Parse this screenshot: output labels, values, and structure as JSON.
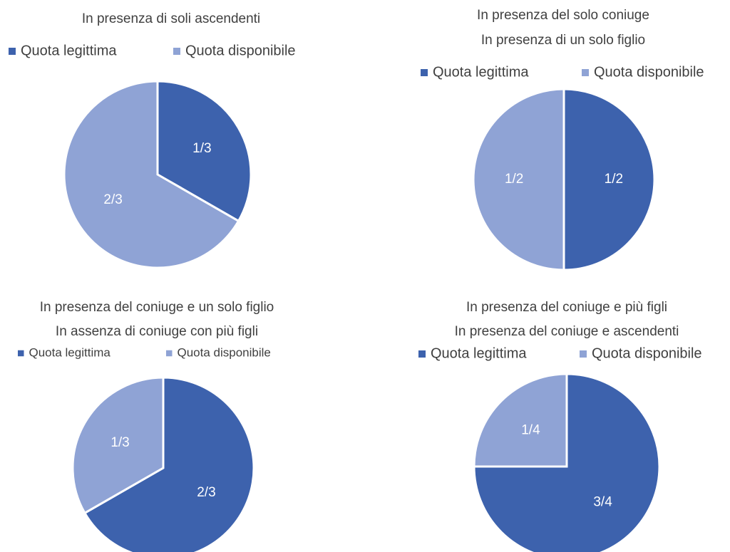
{
  "chart_data": [
    {
      "type": "pie",
      "title": [
        "In presenza di soli ascendenti"
      ],
      "categories": [
        "Quota legittima",
        "Quota disponibile"
      ],
      "values": [
        0.333,
        0.667
      ],
      "value_labels": [
        "1/3",
        "2/3"
      ],
      "colors": [
        "#3d62ad",
        "#8fa3d5"
      ],
      "legend": "top"
    },
    {
      "type": "pie",
      "title": [
        "In presenza del solo coniuge",
        "In presenza di un solo figlio"
      ],
      "categories": [
        "Quota legittima",
        "Quota disponibile"
      ],
      "values": [
        0.5,
        0.5
      ],
      "value_labels": [
        "1/2",
        "1/2"
      ],
      "colors": [
        "#3d62ad",
        "#8fa3d5"
      ],
      "legend": "top"
    },
    {
      "type": "pie",
      "title": [
        "In presenza del coniuge e un solo figlio",
        "In assenza di coniuge con più figli"
      ],
      "categories": [
        "Quota legittima",
        "Quota disponibile"
      ],
      "values": [
        0.667,
        0.333
      ],
      "value_labels": [
        "2/3",
        "1/3"
      ],
      "colors": [
        "#3d62ad",
        "#8fa3d5"
      ],
      "legend": "top"
    },
    {
      "type": "pie",
      "title": [
        "In presenza del coniuge e più figli",
        "In presenza del coniuge e ascendenti"
      ],
      "categories": [
        "Quota legittima",
        "Quota disponibile"
      ],
      "values": [
        0.75,
        0.25
      ],
      "value_labels": [
        "3/4",
        "1/4"
      ],
      "colors": [
        "#3d62ad",
        "#8fa3d5"
      ],
      "legend": "top"
    }
  ]
}
